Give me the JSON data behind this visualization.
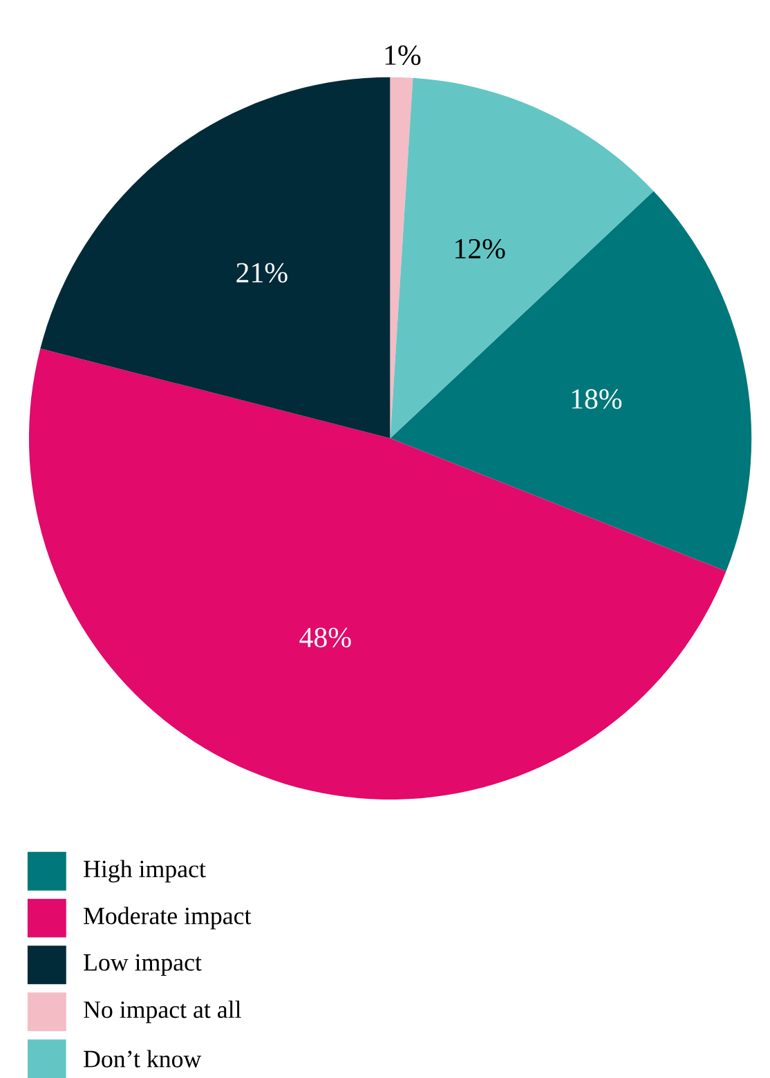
{
  "chart_data": {
    "type": "pie",
    "categories": [
      "High impact",
      "Moderate impact",
      "Low impact",
      "No impact at all",
      "Don’t know"
    ],
    "values": [
      18,
      48,
      21,
      1,
      12
    ],
    "value_labels": [
      "18%",
      "48%",
      "21%",
      "1%",
      "12%"
    ],
    "colors": [
      "#00777a",
      "#e20a6a",
      "#022b3a",
      "#f4bcc5",
      "#63c6c4"
    ],
    "legend": "bottom left"
  }
}
